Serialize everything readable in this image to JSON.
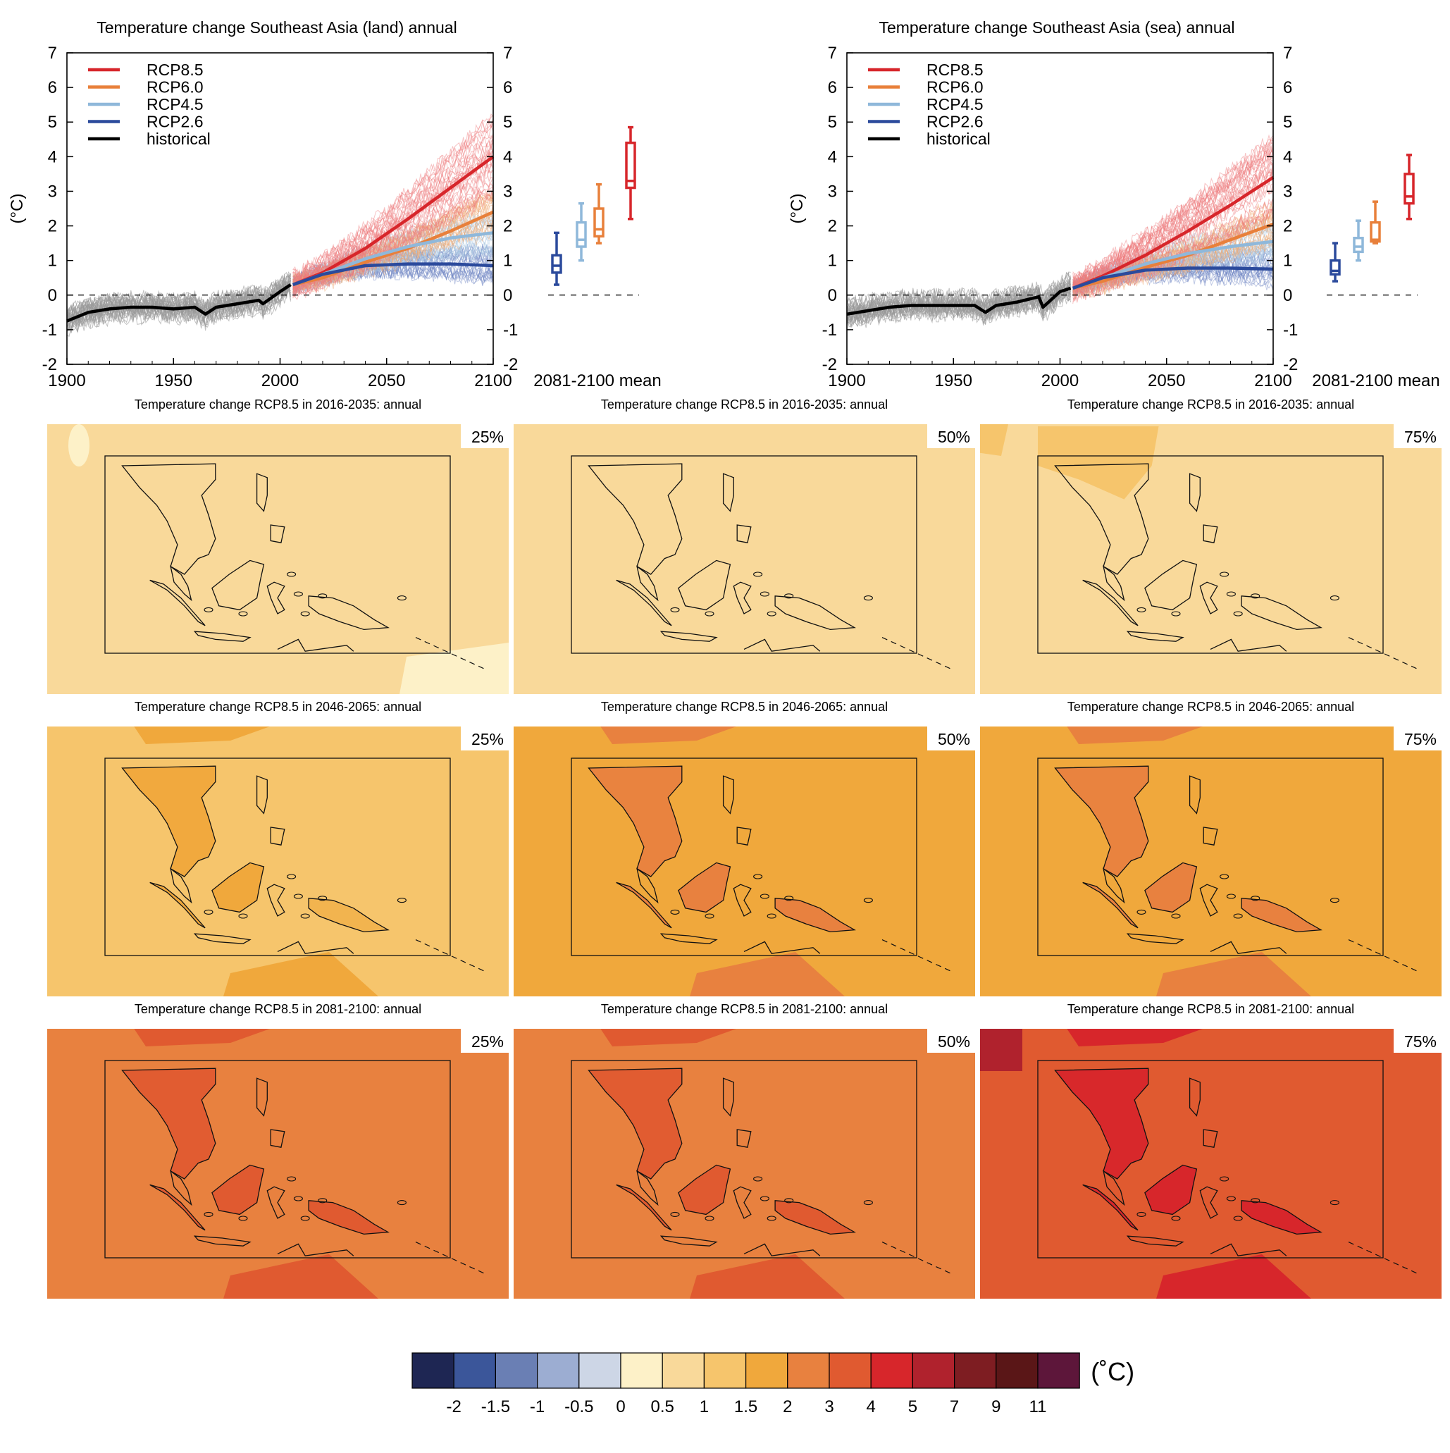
{
  "chart_data": [
    {
      "type": "line",
      "title": "Temperature change Southeast Asia (land) annual",
      "ylabel": "(°C)",
      "xlim": [
        1900,
        2100
      ],
      "ylim": [
        -2,
        7
      ],
      "x_ticks": [
        "1900",
        "1950",
        "2000",
        "2050",
        "2100"
      ],
      "y_ticks": [
        "-2",
        "-1",
        "0",
        "1",
        "2",
        "3",
        "4",
        "5",
        "6",
        "7"
      ],
      "legend": {
        "position": "top-left"
      },
      "series": [
        {
          "name": "RCP8.5",
          "color": "#d7262b",
          "x": [
            2006,
            2020,
            2040,
            2060,
            2080,
            2100
          ],
          "y": [
            0.3,
            0.65,
            1.35,
            2.2,
            3.1,
            4.0
          ]
        },
        {
          "name": "RCP6.0",
          "color": "#e8803b",
          "x": [
            2006,
            2020,
            2040,
            2060,
            2080,
            2100
          ],
          "y": [
            0.3,
            0.5,
            0.95,
            1.35,
            1.85,
            2.4
          ]
        },
        {
          "name": "RCP4.5",
          "color": "#8fb8da",
          "x": [
            2006,
            2020,
            2040,
            2060,
            2080,
            2100
          ],
          "y": [
            0.3,
            0.6,
            1.05,
            1.4,
            1.65,
            1.8
          ]
        },
        {
          "name": "RCP2.6",
          "color": "#2b4a9c",
          "x": [
            2006,
            2020,
            2040,
            2060,
            2080,
            2100
          ],
          "y": [
            0.3,
            0.6,
            0.85,
            0.9,
            0.9,
            0.85
          ]
        },
        {
          "name": "historical",
          "color": "#000000",
          "x": [
            1900,
            1910,
            1920,
            1930,
            1940,
            1950,
            1960,
            1965,
            1970,
            1980,
            1990,
            1992,
            2000,
            2005
          ],
          "y": [
            -0.75,
            -0.5,
            -0.4,
            -0.35,
            -0.35,
            -0.4,
            -0.35,
            -0.55,
            -0.35,
            -0.25,
            -0.15,
            -0.25,
            0.1,
            0.3
          ]
        }
      ],
      "period_boxes": {
        "label": "2081-2100 mean",
        "boxes": [
          {
            "name": "RCP2.6",
            "color": "#2b4a9c",
            "min": 0.3,
            "q1": 0.65,
            "median": 0.85,
            "q3": 1.15,
            "max": 1.8
          },
          {
            "name": "RCP4.5",
            "color": "#8fb8da",
            "min": 1.0,
            "q1": 1.4,
            "median": 1.6,
            "q3": 2.1,
            "max": 2.65
          },
          {
            "name": "RCP6.0",
            "color": "#e8803b",
            "min": 1.5,
            "q1": 1.7,
            "median": 1.9,
            "q3": 2.5,
            "max": 3.2
          },
          {
            "name": "RCP8.5",
            "color": "#d7262b",
            "min": 2.2,
            "q1": 3.1,
            "median": 3.3,
            "q3": 4.4,
            "max": 4.85
          }
        ]
      }
    },
    {
      "type": "line",
      "title": "Temperature change Southeast Asia (sea) annual",
      "ylabel": "(°C)",
      "xlim": [
        1900,
        2100
      ],
      "ylim": [
        -2,
        7
      ],
      "x_ticks": [
        "1900",
        "1950",
        "2000",
        "2050",
        "2100"
      ],
      "y_ticks": [
        "-2",
        "-1",
        "0",
        "1",
        "2",
        "3",
        "4",
        "5",
        "6",
        "7"
      ],
      "legend": {
        "position": "top-left"
      },
      "series": [
        {
          "name": "RCP8.5",
          "color": "#d7262b",
          "x": [
            2006,
            2020,
            2040,
            2060,
            2080,
            2100
          ],
          "y": [
            0.2,
            0.55,
            1.15,
            1.85,
            2.6,
            3.4
          ]
        },
        {
          "name": "RCP6.0",
          "color": "#e8803b",
          "x": [
            2006,
            2020,
            2040,
            2060,
            2080,
            2100
          ],
          "y": [
            0.2,
            0.4,
            0.8,
            1.15,
            1.6,
            2.05
          ]
        },
        {
          "name": "RCP4.5",
          "color": "#8fb8da",
          "x": [
            2006,
            2020,
            2040,
            2060,
            2080,
            2100
          ],
          "y": [
            0.2,
            0.5,
            0.9,
            1.2,
            1.4,
            1.55
          ]
        },
        {
          "name": "RCP2.6",
          "color": "#2b4a9c",
          "x": [
            2006,
            2020,
            2040,
            2060,
            2080,
            2100
          ],
          "y": [
            0.2,
            0.5,
            0.72,
            0.78,
            0.78,
            0.75
          ]
        },
        {
          "name": "historical",
          "color": "#000000",
          "x": [
            1900,
            1910,
            1920,
            1930,
            1940,
            1950,
            1960,
            1965,
            1970,
            1980,
            1990,
            1992,
            2000,
            2005
          ],
          "y": [
            -0.55,
            -0.45,
            -0.35,
            -0.3,
            -0.3,
            -0.3,
            -0.3,
            -0.5,
            -0.3,
            -0.2,
            -0.05,
            -0.35,
            0.1,
            0.2
          ]
        }
      ],
      "period_boxes": {
        "label": "2081-2100 mean",
        "boxes": [
          {
            "name": "RCP2.6",
            "color": "#2b4a9c",
            "min": 0.4,
            "q1": 0.6,
            "median": 0.7,
            "q3": 1.0,
            "max": 1.5
          },
          {
            "name": "RCP4.5",
            "color": "#8fb8da",
            "min": 1.0,
            "q1": 1.25,
            "median": 1.4,
            "q3": 1.65,
            "max": 2.15
          },
          {
            "name": "RCP6.0",
            "color": "#e8803b",
            "min": 1.5,
            "q1": 1.55,
            "median": 1.6,
            "q3": 2.1,
            "max": 2.7
          },
          {
            "name": "RCP8.5",
            "color": "#d7262b",
            "min": 2.2,
            "q1": 2.65,
            "median": 2.85,
            "q3": 3.5,
            "max": 4.05
          }
        ]
      }
    },
    {
      "type": "heatmap",
      "description_of_grid": "3 periods x 3 percentiles",
      "maps": [
        {
          "title": "Temperature change RCP8.5 in 2016-2035: annual",
          "percentile": "25%",
          "base_color": "#f9d99a",
          "patch_color": "#fdf1c8"
        },
        {
          "title": "Temperature change RCP8.5 in 2016-2035: annual",
          "percentile": "50%",
          "base_color": "#f9d99a",
          "patch_color": "#f6c56c"
        },
        {
          "title": "Temperature change RCP8.5 in 2016-2035: annual",
          "percentile": "75%",
          "base_color": "#f9d99a",
          "patch_color": "#f6c56c"
        },
        {
          "title": "Temperature change RCP8.5 in 2046-2065: annual",
          "percentile": "25%",
          "base_color": "#f6c56c",
          "patch_color": "#f0a83c"
        },
        {
          "title": "Temperature change RCP8.5 in 2046-2065: annual",
          "percentile": "50%",
          "base_color": "#f0a83c",
          "patch_color": "#e8813f"
        },
        {
          "title": "Temperature change RCP8.5 in 2046-2065: annual",
          "percentile": "75%",
          "base_color": "#f0a83c",
          "patch_color": "#e8813f"
        },
        {
          "title": "Temperature change RCP8.5 in 2081-2100: annual",
          "percentile": "25%",
          "base_color": "#e8813f",
          "patch_color": "#e05a30"
        },
        {
          "title": "Temperature change RCP8.5 in 2081-2100: annual",
          "percentile": "50%",
          "base_color": "#e8813f",
          "patch_color": "#e05a30"
        },
        {
          "title": "Temperature change RCP8.5 in 2081-2100: annual",
          "percentile": "75%",
          "base_color": "#e05a30",
          "patch_color": "#d7262b"
        }
      ],
      "colorbar": {
        "unit": "(˚C)",
        "labels": [
          "-2",
          "-1.5",
          "-1",
          "-0.5",
          "0",
          "0.5",
          "1",
          "1.5",
          "2",
          "3",
          "4",
          "5",
          "7",
          "9",
          "11"
        ],
        "colors": [
          "#1e2653",
          "#3b569a",
          "#6a7fb4",
          "#9cadd2",
          "#cdd6e6",
          "#fdf1c8",
          "#f9d99a",
          "#f6c56c",
          "#f0a83c",
          "#e8813f",
          "#e05a30",
          "#d7262b",
          "#b0222d",
          "#7e1d22",
          "#5a1617",
          "#5d163a"
        ]
      }
    }
  ]
}
